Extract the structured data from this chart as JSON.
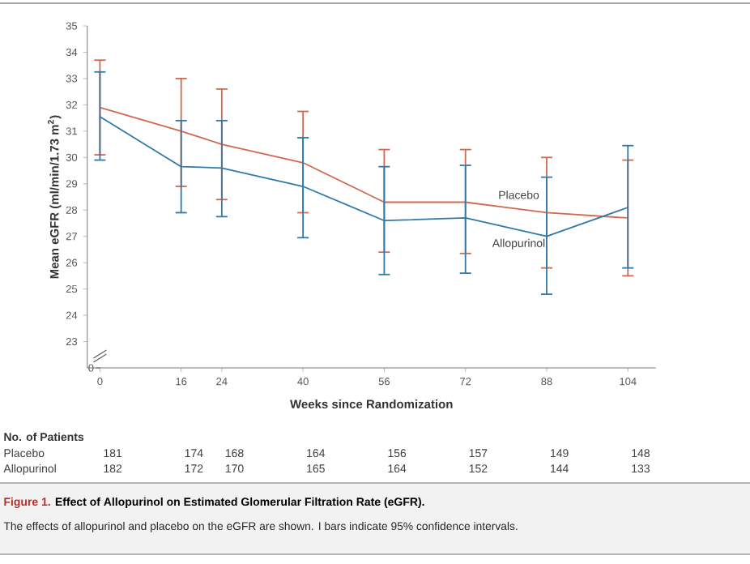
{
  "chart_data": {
    "type": "line",
    "xlabel": "Weeks since Randomization",
    "ylabel": "Mean eGFR (ml/min/1.73 m$^{2}$)",
    "x": [
      0,
      16,
      24,
      40,
      56,
      72,
      88,
      104
    ],
    "xlim": [
      -2.5,
      109.5
    ],
    "xticks": [
      0,
      16,
      24,
      40,
      56,
      72,
      88,
      104
    ],
    "ylim": [
      22,
      35
    ],
    "yticks": [
      23,
      24,
      25,
      26,
      27,
      28,
      29,
      30,
      31,
      32,
      33,
      34,
      35
    ],
    "series": [
      {
        "name": "Placebo",
        "color": "#d0694f",
        "values": [
          31.9,
          31.0,
          30.5,
          29.8,
          28.3,
          28.3,
          27.9,
          27.7
        ],
        "errors": [
          [
            30.1,
            33.7
          ],
          [
            28.9,
            33.0
          ],
          [
            28.4,
            32.6
          ],
          [
            27.9,
            31.75
          ],
          [
            26.4,
            30.3
          ],
          [
            26.35,
            30.3
          ],
          [
            25.8,
            30.0
          ],
          [
            25.5,
            29.9
          ]
        ]
      },
      {
        "name": "Allopurinol",
        "color": "#2f7aa8",
        "values": [
          31.55,
          29.65,
          29.6,
          28.9,
          27.6,
          27.7,
          27.0,
          28.1
        ],
        "errors": [
          [
            29.9,
            33.25
          ],
          [
            27.9,
            31.4
          ],
          [
            27.75,
            31.4
          ],
          [
            26.95,
            30.75
          ],
          [
            25.55,
            29.65
          ],
          [
            25.6,
            29.7
          ],
          [
            24.8,
            29.25
          ],
          [
            25.8,
            30.45
          ]
        ]
      }
    ],
    "annotations": [
      "0",
      "No. of Patients",
      "Placebo",
      "181",
      "174",
      "168",
      "164",
      "156",
      "157",
      "149",
      "148",
      "Allopurinol",
      "182",
      "172",
      "170",
      "165",
      "164",
      "152",
      "144",
      "133",
      "Figure 1.",
      "Effect of Allopurinol on Estimated Glomerular Filtration Rate (eGFR).",
      "The effects of allopurinol and placebo on the eGFR are shown. I bars indicate 95% confidence intervals."
    ]
  }
}
